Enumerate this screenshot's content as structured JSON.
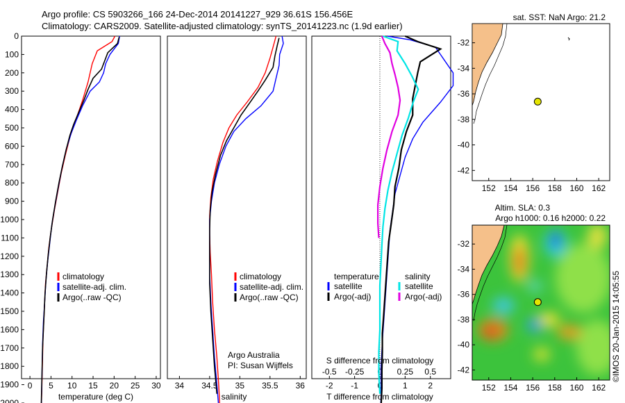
{
  "header": {
    "line1": "Argo profile: CS 5903266_166 24-Dec-2014 20141227_929 36.61S 156.456E",
    "line2": "Climatology: CARS2009. Satellite-adjusted climatology: synTS_20141223.nc (1.9d earlier)"
  },
  "colors": {
    "climatology": "#ff0000",
    "satellite": "#0000ff",
    "argo": "#000000",
    "sat_t_diff": "#0000ff",
    "sat_s_diff": "#00e5e5",
    "argo_s_diff": "#e000e0",
    "land": "#f5c08a",
    "float_marker": "#e5e500"
  },
  "chart_data": [
    {
      "type": "line",
      "id": "temperature",
      "xlabel": "temperature (deg C)",
      "ylabel": "",
      "xlim": [
        -2,
        31
      ],
      "ylim": [
        2050,
        0
      ],
      "x_ticks": [
        "0",
        "5",
        "10",
        "15",
        "20",
        "25",
        "30"
      ],
      "y_ticks": [
        "0",
        "100",
        "200",
        "300",
        "400",
        "500",
        "600",
        "700",
        "800",
        "900",
        "1000",
        "1100",
        "1200",
        "1300",
        "1400",
        "1500",
        "1600",
        "1700",
        "1800",
        "1900",
        "2000"
      ],
      "legend": [
        "climatology",
        "satellite-adj. clim.",
        "Argo(..raw -QC)"
      ],
      "legend_position": "bottom-center",
      "series": [
        {
          "name": "climatology",
          "color": "#ff0000",
          "points": [
            [
              20.2,
              0
            ],
            [
              19.5,
              30
            ],
            [
              16,
              80
            ],
            [
              14.8,
              150
            ],
            [
              13.8,
              250
            ],
            [
              12.5,
              350
            ],
            [
              11,
              450
            ],
            [
              9.5,
              550
            ],
            [
              8.4,
              650
            ],
            [
              7.4,
              750
            ],
            [
              6.6,
              850
            ],
            [
              5.8,
              950
            ],
            [
              5.1,
              1050
            ],
            [
              4.5,
              1150
            ],
            [
              4.1,
              1250
            ],
            [
              3.7,
              1350
            ],
            [
              3.5,
              1450
            ],
            [
              3.3,
              1550
            ],
            [
              3.1,
              1650
            ],
            [
              3,
              1750
            ],
            [
              2.9,
              1850
            ],
            [
              2.8,
              1950
            ],
            [
              2.7,
              2030
            ]
          ]
        },
        {
          "name": "satellite-adj. clim.",
          "color": "#0000ff",
          "points": [
            [
              21.3,
              0
            ],
            [
              21,
              40
            ],
            [
              19,
              100
            ],
            [
              18,
              150
            ],
            [
              17.5,
              200
            ],
            [
              16.5,
              250
            ],
            [
              14.3,
              300
            ],
            [
              12.5,
              380
            ],
            [
              11,
              460
            ],
            [
              9.8,
              530
            ],
            [
              8.6,
              620
            ],
            [
              7.6,
              720
            ],
            [
              6.7,
              830
            ],
            [
              5.9,
              930
            ],
            [
              5.2,
              1030
            ],
            [
              4.7,
              1130
            ],
            [
              4.2,
              1230
            ],
            [
              3.8,
              1330
            ],
            [
              3.5,
              1450
            ],
            [
              3.2,
              1560
            ],
            [
              3,
              1680
            ],
            [
              2.9,
              1800
            ],
            [
              2.8,
              1920
            ],
            [
              2.7,
              2020
            ]
          ]
        },
        {
          "name": "Argo(..raw -QC)",
          "color": "#000000",
          "points": [
            [
              21.2,
              5
            ],
            [
              20.8,
              40
            ],
            [
              18.5,
              90
            ],
            [
              17.5,
              150
            ],
            [
              17,
              180
            ],
            [
              15,
              230
            ],
            [
              13.8,
              290
            ],
            [
              12.8,
              350
            ],
            [
              11.5,
              420
            ],
            [
              10.4,
              480
            ],
            [
              9.5,
              540
            ],
            [
              8.6,
              620
            ],
            [
              7.7,
              710
            ],
            [
              6.9,
              800
            ],
            [
              6.1,
              900
            ],
            [
              5.4,
              1000
            ],
            [
              4.8,
              1100
            ],
            [
              4.3,
              1200
            ],
            [
              3.9,
              1300
            ],
            [
              3.6,
              1400
            ],
            [
              3.4,
              1500
            ],
            [
              3.2,
              1600
            ],
            [
              3,
              1700
            ],
            [
              2.9,
              1800
            ],
            [
              2.8,
              1900
            ],
            [
              2.7,
              2000
            ]
          ]
        }
      ]
    },
    {
      "type": "line",
      "id": "salinity",
      "xlabel": "salinity",
      "xlim": [
        33.8,
        36.1
      ],
      "ylim": [
        2050,
        0
      ],
      "x_ticks": [
        "34",
        "34.5",
        "35",
        "35.5",
        "36"
      ],
      "legend": [
        "climatology",
        "satellite-adj. clim.",
        "Argo(..raw -QC)"
      ],
      "legend_position": "bottom-center",
      "annotation": [
        "Argo Australia",
        "PI: Susan Wijffels"
      ],
      "series": [
        {
          "name": "climatology",
          "color": "#ff0000",
          "points": [
            [
              35.6,
              0
            ],
            [
              35.55,
              60
            ],
            [
              35.5,
              120
            ],
            [
              35.42,
              200
            ],
            [
              35.3,
              280
            ],
            [
              35.12,
              360
            ],
            [
              34.95,
              430
            ],
            [
              34.82,
              500
            ],
            [
              34.72,
              580
            ],
            [
              34.63,
              680
            ],
            [
              34.56,
              780
            ],
            [
              34.52,
              880
            ],
            [
              34.5,
              980
            ],
            [
              34.5,
              1080
            ],
            [
              34.51,
              1180
            ],
            [
              34.53,
              1300
            ],
            [
              34.55,
              1450
            ],
            [
              34.58,
              1600
            ],
            [
              34.62,
              1750
            ],
            [
              34.65,
              1900
            ],
            [
              34.67,
              2030
            ]
          ]
        },
        {
          "name": "satellite-adj. clim.",
          "color": "#0000ff",
          "points": [
            [
              35.7,
              0
            ],
            [
              35.72,
              40
            ],
            [
              35.66,
              100
            ],
            [
              35.65,
              160
            ],
            [
              35.6,
              230
            ],
            [
              35.55,
              300
            ],
            [
              35.35,
              380
            ],
            [
              35.1,
              450
            ],
            [
              34.9,
              520
            ],
            [
              34.77,
              600
            ],
            [
              34.66,
              700
            ],
            [
              34.58,
              800
            ],
            [
              34.53,
              900
            ],
            [
              34.5,
              1000
            ],
            [
              34.5,
              1100
            ],
            [
              34.5,
              1200
            ],
            [
              34.5,
              1300
            ],
            [
              34.52,
              1450
            ],
            [
              34.55,
              1600
            ],
            [
              34.58,
              1750
            ],
            [
              34.62,
              1900
            ],
            [
              34.65,
              2020
            ]
          ]
        },
        {
          "name": "Argo(..raw -QC)",
          "color": "#000000",
          "points": [
            [
              35.65,
              10
            ],
            [
              35.62,
              50
            ],
            [
              35.58,
              110
            ],
            [
              35.55,
              170
            ],
            [
              35.42,
              240
            ],
            [
              35.3,
              300
            ],
            [
              35.15,
              370
            ],
            [
              35.02,
              430
            ],
            [
              34.9,
              500
            ],
            [
              34.78,
              570
            ],
            [
              34.68,
              650
            ],
            [
              34.6,
              750
            ],
            [
              34.54,
              850
            ],
            [
              34.51,
              950
            ],
            [
              34.5,
              1050
            ],
            [
              34.5,
              1150
            ],
            [
              34.5,
              1250
            ],
            [
              34.5,
              1350
            ],
            [
              34.52,
              1500
            ],
            [
              34.55,
              1650
            ],
            [
              34.58,
              1800
            ],
            [
              34.62,
              1950
            ]
          ]
        }
      ]
    },
    {
      "type": "line",
      "id": "differences",
      "xlabel": "T difference from climatology",
      "xlabel_top": "S difference from climatology",
      "xlim_T": [
        -2.5,
        3.0
      ],
      "x_ticks_T": [
        "-2",
        "-1",
        "0",
        "1",
        "2"
      ],
      "x_ticks_S": [
        "-0.5",
        "-0.25",
        "0",
        "0.25",
        "0.5"
      ],
      "ylim": [
        2050,
        0
      ],
      "legend_temperature_title": "temperature",
      "legend_salinity_title": "salinity",
      "legend": [
        "satellite",
        "Argo(-adj)",
        "satellite",
        "Argo(-adj)"
      ],
      "series": [
        {
          "name": "satellite",
          "quantity": "T",
          "color": "#0000ff",
          "points": [
            [
              0.3,
              0
            ],
            [
              1.2,
              20
            ],
            [
              2.2,
              60
            ],
            [
              2.5,
              120
            ],
            [
              2.9,
              200
            ],
            [
              2.9,
              270
            ],
            [
              2.4,
              360
            ],
            [
              1.7,
              470
            ],
            [
              1.3,
              560
            ],
            [
              1,
              660
            ],
            [
              0.8,
              760
            ],
            [
              0.6,
              860
            ],
            [
              0.5,
              960
            ],
            [
              0.4,
              1060
            ],
            [
              0.35,
              1160
            ],
            [
              0.3,
              1260
            ],
            [
              0.25,
              1360
            ],
            [
              0.2,
              1460
            ],
            [
              0.15,
              1560
            ],
            [
              0.1,
              1660
            ],
            [
              0.05,
              1800
            ],
            [
              0.05,
              1950
            ],
            [
              0.03,
              2030
            ]
          ]
        },
        {
          "name": "Argo(-adj)",
          "quantity": "T",
          "color": "#000000",
          "points": [
            [
              1,
              0
            ],
            [
              1.5,
              30
            ],
            [
              2.4,
              70
            ],
            [
              1.6,
              140
            ],
            [
              1.5,
              200
            ],
            [
              1.4,
              270
            ],
            [
              1.3,
              340
            ],
            [
              1.3,
              430
            ],
            [
              1.05,
              520
            ],
            [
              0.85,
              620
            ],
            [
              0.75,
              720
            ],
            [
              0.6,
              820
            ],
            [
              0.55,
              920
            ],
            [
              0.45,
              1020
            ],
            [
              0.35,
              1120
            ],
            [
              0.3,
              1220
            ],
            [
              0.25,
              1320
            ],
            [
              0.2,
              1420
            ],
            [
              0.15,
              1520
            ],
            [
              0.1,
              1620
            ],
            [
              0.1,
              1720
            ],
            [
              0.08,
              1820
            ],
            [
              0.08,
              1920
            ],
            [
              0.05,
              2010
            ]
          ]
        },
        {
          "name": "satellite",
          "quantity": "S",
          "color": "#00e5e5",
          "points": [
            [
              0.03,
              0
            ],
            [
              0.18,
              30
            ],
            [
              0.17,
              80
            ],
            [
              0.25,
              150
            ],
            [
              0.32,
              220
            ],
            [
              0.38,
              290
            ],
            [
              0.33,
              360
            ],
            [
              0.28,
              450
            ],
            [
              0.22,
              540
            ],
            [
              0.17,
              640
            ],
            [
              0.12,
              740
            ],
            [
              0.08,
              840
            ],
            [
              0.05,
              940
            ],
            [
              0.03,
              1040
            ],
            [
              0.02,
              1140
            ],
            [
              0.01,
              1250
            ],
            [
              0,
              1360
            ],
            [
              0,
              1480
            ],
            [
              0,
              1600
            ],
            [
              -0.01,
              1720
            ],
            [
              -0.01,
              1840
            ],
            [
              0,
              1950
            ]
          ]
        },
        {
          "name": "Argo(-adj)",
          "quantity": "S",
          "color": "#e000e0",
          "points": [
            [
              0.02,
              0
            ],
            [
              0.05,
              40
            ],
            [
              0.1,
              90
            ],
            [
              0.12,
              150
            ],
            [
              0.15,
              210
            ],
            [
              0.18,
              280
            ],
            [
              0.2,
              350
            ],
            [
              0.18,
              430
            ],
            [
              0.12,
              520
            ],
            [
              0.07,
              620
            ],
            [
              0.03,
              720
            ],
            [
              0,
              820
            ],
            [
              -0.02,
              920
            ],
            [
              -0.02,
              1020
            ],
            [
              -0.01,
              1100
            ]
          ]
        }
      ]
    },
    {
      "type": "scatter",
      "id": "map-sst",
      "title": "sat. SST: NaN Argo: 21.2",
      "xlim": [
        150.5,
        163
      ],
      "ylim": [
        -42.8,
        -30.5
      ],
      "x_ticks": [
        "152",
        "154",
        "156",
        "158",
        "160",
        "162"
      ],
      "y_ticks": [
        "-32",
        "-34",
        "-36",
        "-38",
        "-40",
        "-42"
      ],
      "points": [
        [
          156.456,
          -36.61
        ]
      ]
    },
    {
      "type": "heatmap",
      "id": "map-sla",
      "title": "Altim. SLA: 0.3",
      "subtitle": "Argo h1000: 0.16 h2000: 0.22",
      "xlim": [
        150.5,
        163
      ],
      "ylim": [
        -42.8,
        -30.5
      ],
      "x_ticks": [
        "152",
        "154",
        "156",
        "158",
        "160",
        "162"
      ],
      "y_ticks": [
        "-32",
        "-34",
        "-36",
        "-38",
        "-40",
        "-42"
      ],
      "points": [
        [
          156.456,
          -36.61
        ]
      ]
    }
  ],
  "credit": "©IMOS 20-Jan-2015 14:05:55"
}
